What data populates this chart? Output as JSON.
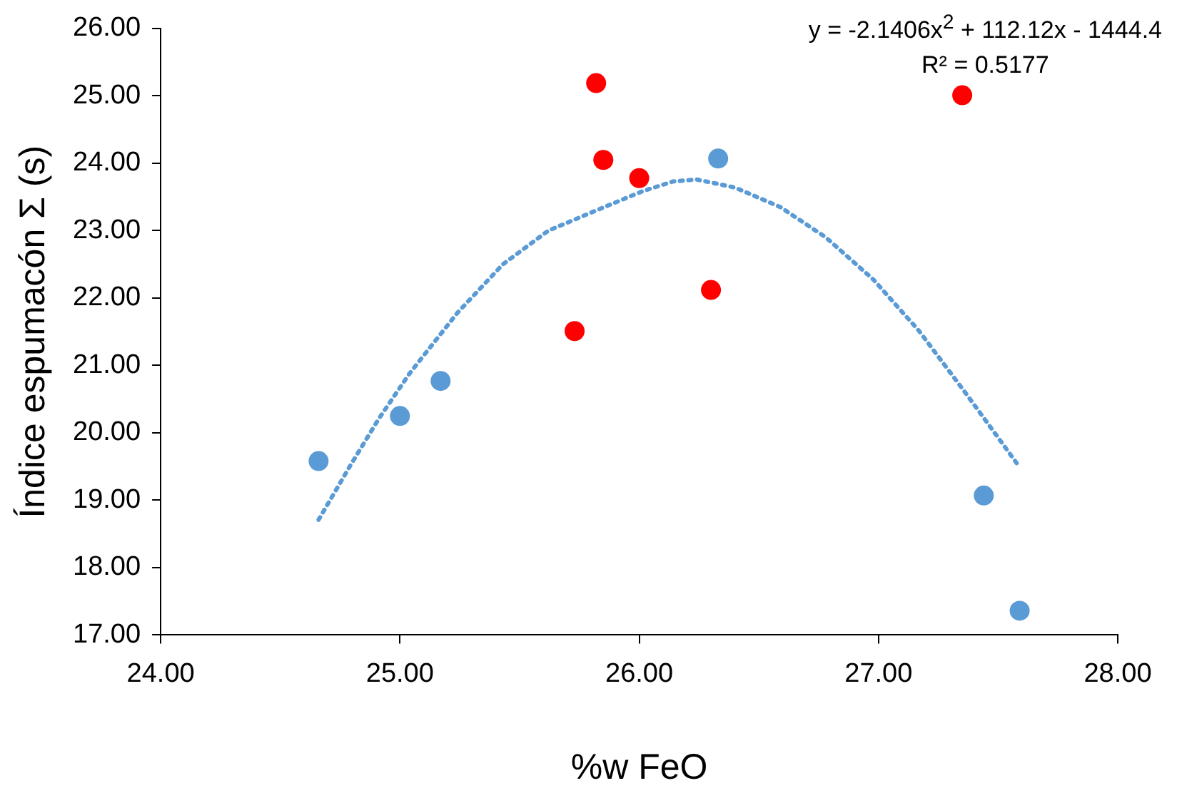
{
  "chart_data": {
    "type": "scatter",
    "xlabel": "%w FeO",
    "ylabel": "Índice espumacón Σ (s)",
    "annotations": [
      "y = -2.1406x$^{2}$ + 112.12x - 1444.4",
      "R² = 0.5177"
    ],
    "xlim": [
      24,
      28
    ],
    "xticks": [
      {
        "value": 24,
        "label": "24.00"
      },
      {
        "value": 25,
        "label": "25.00"
      },
      {
        "value": 26,
        "label": "26.00"
      },
      {
        "value": 27,
        "label": "27.00"
      },
      {
        "value": 28,
        "label": "28.00"
      }
    ],
    "ylim": [
      17,
      26
    ],
    "yticks": [
      {
        "value": 17,
        "label": "17.00"
      },
      {
        "value": 18,
        "label": "18.00"
      },
      {
        "value": 19,
        "label": "19.00"
      },
      {
        "value": 20,
        "label": "20.00"
      },
      {
        "value": 21,
        "label": "21.00"
      },
      {
        "value": 22,
        "label": "22.00"
      },
      {
        "value": 23,
        "label": "23.00"
      },
      {
        "value": 24,
        "label": "24.00"
      },
      {
        "value": 25,
        "label": "25.00"
      },
      {
        "value": 26,
        "label": "26.00"
      }
    ],
    "grid": false,
    "legend": false,
    "marker": "circle",
    "series": [
      {
        "color": "#5b9bd5",
        "x": [
          24.66,
          25.0,
          25.17,
          26.33,
          27.44,
          27.59
        ],
        "values": [
          19.58,
          20.25,
          20.77,
          24.07,
          19.07,
          17.36
        ]
      },
      {
        "color": "#ff0000",
        "x": [
          25.82,
          25.85,
          26.0,
          25.73,
          26.3,
          27.35
        ],
        "values": [
          25.19,
          24.05,
          23.78,
          21.51,
          22.12,
          25.01
        ]
      },
      {
        "type": "line",
        "color": "#5b9bd5",
        "line_style": "dotted",
        "marker": "none",
        "x": [
          24.66,
          24.79,
          24.91,
          25.04,
          25.24,
          25.43,
          25.62,
          25.82,
          26.01,
          26.14,
          26.24,
          26.4,
          26.59,
          26.78,
          26.98,
          27.17,
          27.36,
          27.59
        ],
        "values": [
          18.71,
          19.5,
          20.2,
          20.88,
          21.78,
          22.5,
          23.0,
          23.3,
          23.58,
          23.73,
          23.76,
          23.64,
          23.35,
          22.9,
          22.27,
          21.51,
          20.61,
          19.49
        ]
      }
    ]
  }
}
